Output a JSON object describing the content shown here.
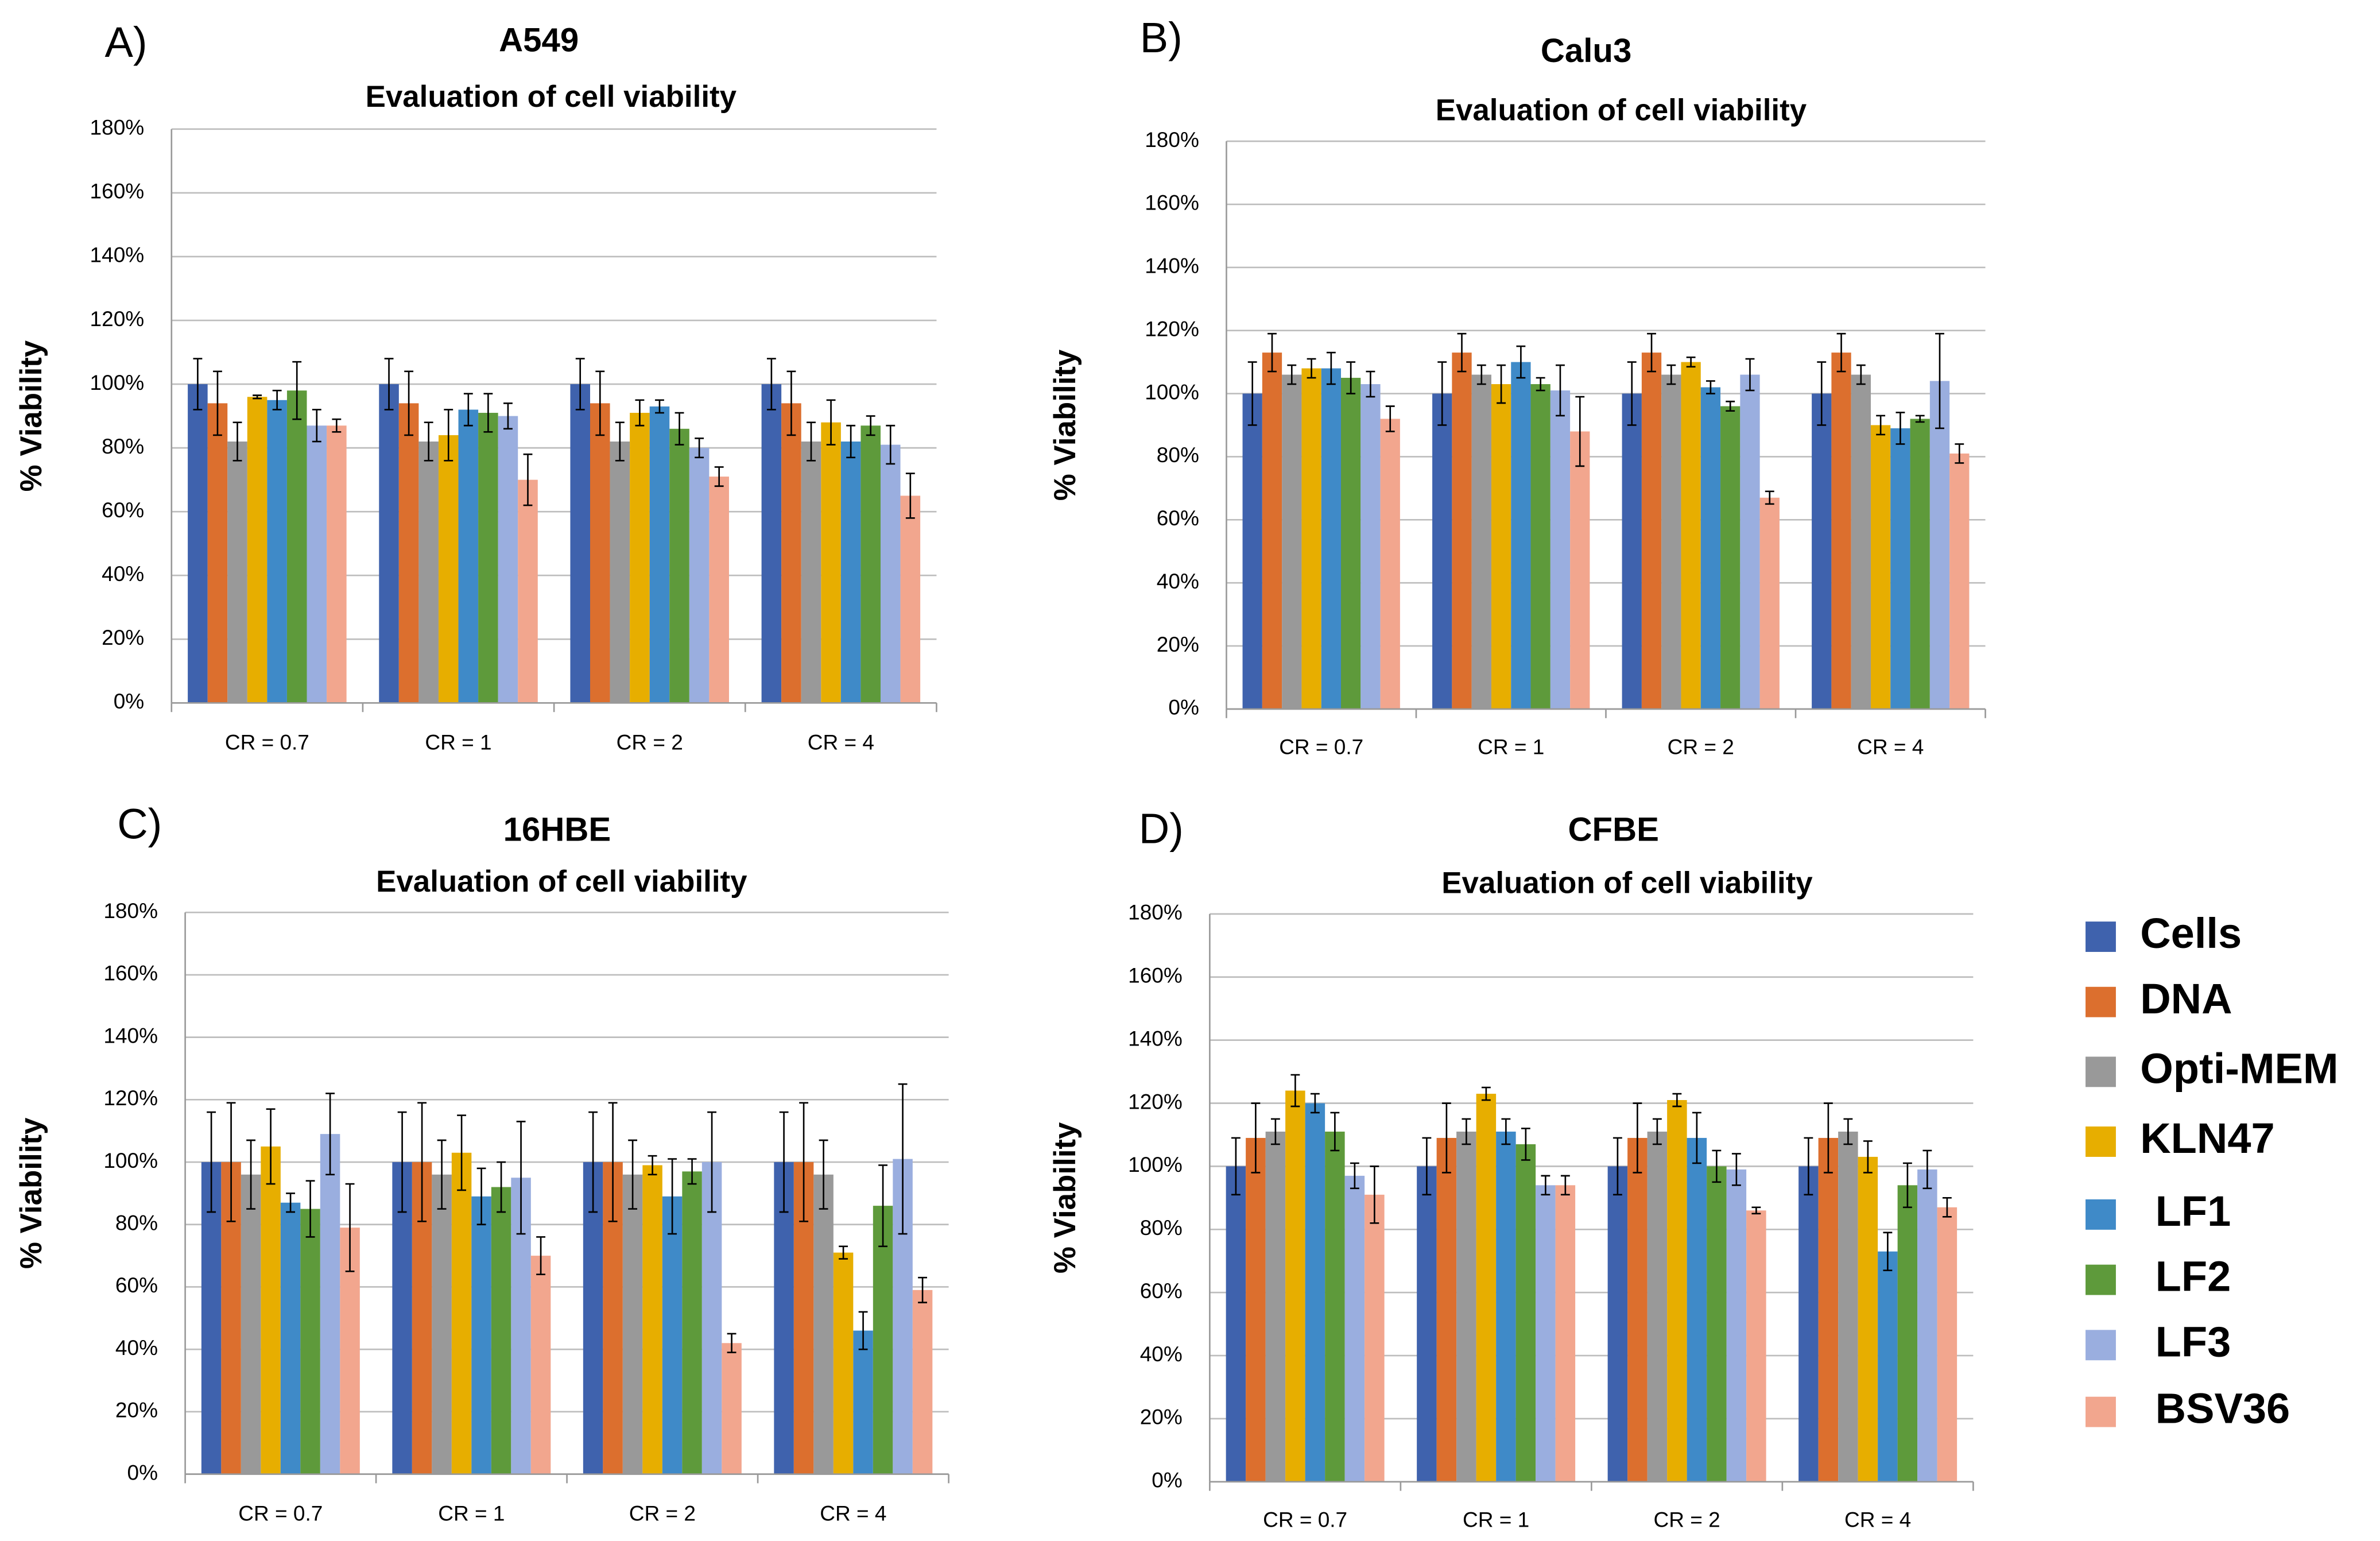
{
  "legend": {
    "entries": [
      {
        "name": "Cells",
        "color": "#3f62ad"
      },
      {
        "name": "DNA",
        "color": "#dc6f2e"
      },
      {
        "name": "Opti-MEM",
        "color": "#999999"
      },
      {
        "name": "KLN47",
        "color": "#e7ae00"
      },
      {
        "name": "LF1",
        "color": "#3f8ac8"
      },
      {
        "name": "LF2",
        "color": "#5e9a3b"
      },
      {
        "name": "LF3",
        "color": "#9aaedf"
      },
      {
        "name": "BSV36",
        "color": "#f2a68e"
      }
    ]
  },
  "chart_data": [
    {
      "type": "bar",
      "panel": "A)",
      "title": "A549",
      "subtitle": "Evaluation of cell viability",
      "y_label": "% Viability",
      "categories": [
        "CR = 0.7",
        "CR = 1",
        "CR = 2",
        "CR = 4"
      ],
      "ylim": [
        0,
        180
      ],
      "yticks": [
        {
          "value": 0,
          "label": "0%"
        },
        {
          "value": 20,
          "label": "20%"
        },
        {
          "value": 40,
          "label": "40%"
        },
        {
          "value": 60,
          "label": "60%"
        },
        {
          "value": 80,
          "label": "80%"
        },
        {
          "value": 100,
          "label": "100%"
        },
        {
          "value": 120,
          "label": "120%"
        },
        {
          "value": 140,
          "label": "140%"
        },
        {
          "value": 160,
          "label": "160%"
        },
        {
          "value": 180,
          "label": "180%"
        }
      ],
      "grid": true,
      "series": [
        {
          "values": [
            100,
            100,
            100,
            100
          ],
          "errors": [
            8,
            8,
            8,
            8
          ]
        },
        {
          "values": [
            94,
            94,
            94,
            94
          ],
          "errors": [
            10,
            10,
            10,
            10
          ]
        },
        {
          "values": [
            82,
            82,
            82,
            82
          ],
          "errors": [
            6,
            6,
            6,
            6
          ]
        },
        {
          "values": [
            96,
            84,
            91,
            88
          ],
          "errors": [
            0.5,
            8,
            4,
            7
          ]
        },
        {
          "values": [
            95,
            92,
            93,
            82
          ],
          "errors": [
            3,
            5,
            2,
            5
          ]
        },
        {
          "values": [
            98,
            91,
            86,
            87
          ],
          "errors": [
            9,
            6,
            5,
            3
          ]
        },
        {
          "values": [
            87,
            90,
            80,
            81
          ],
          "errors": [
            5,
            4,
            3,
            6
          ]
        },
        {
          "values": [
            87,
            70,
            71,
            65
          ],
          "errors": [
            2,
            8,
            3,
            7
          ]
        }
      ]
    },
    {
      "type": "bar",
      "panel": "B)",
      "title": "Calu3",
      "subtitle": "Evaluation of cell viability",
      "y_label": "% Viability",
      "categories": [
        "CR = 0.7",
        "CR = 1",
        "CR = 2",
        "CR = 4"
      ],
      "ylim": [
        0,
        180
      ],
      "yticks": [
        {
          "value": 0,
          "label": "0%"
        },
        {
          "value": 20,
          "label": "20%"
        },
        {
          "value": 40,
          "label": "40%"
        },
        {
          "value": 60,
          "label": "60%"
        },
        {
          "value": 80,
          "label": "80%"
        },
        {
          "value": 100,
          "label": "100%"
        },
        {
          "value": 120,
          "label": "120%"
        },
        {
          "value": 140,
          "label": "140%"
        },
        {
          "value": 160,
          "label": "160%"
        },
        {
          "value": 180,
          "label": "180%"
        }
      ],
      "grid": true,
      "series": [
        {
          "values": [
            100,
            100,
            100,
            100
          ],
          "errors": [
            10,
            10,
            10,
            10
          ]
        },
        {
          "values": [
            113,
            113,
            113,
            113
          ],
          "errors": [
            6,
            6,
            6,
            6
          ]
        },
        {
          "values": [
            106,
            106,
            106,
            106
          ],
          "errors": [
            3,
            3,
            3,
            3
          ]
        },
        {
          "values": [
            108,
            103,
            110,
            90
          ],
          "errors": [
            3,
            6,
            1.5,
            3
          ]
        },
        {
          "values": [
            108,
            110,
            102,
            89
          ],
          "errors": [
            5,
            5,
            2,
            5
          ]
        },
        {
          "values": [
            105,
            103,
            96,
            92
          ],
          "errors": [
            5,
            2,
            1.5,
            1
          ]
        },
        {
          "values": [
            103,
            101,
            106,
            104
          ],
          "errors": [
            4,
            8,
            5,
            15
          ]
        },
        {
          "values": [
            92,
            88,
            67,
            81
          ],
          "errors": [
            4,
            11,
            2,
            3
          ]
        }
      ]
    },
    {
      "type": "bar",
      "panel": "C)",
      "title": "16HBE",
      "subtitle": "Evaluation of cell viability",
      "y_label": "% Viability",
      "categories": [
        "CR = 0.7",
        "CR = 1",
        "CR = 2",
        "CR = 4"
      ],
      "ylim": [
        0,
        180
      ],
      "yticks": [
        {
          "value": 0,
          "label": "0%"
        },
        {
          "value": 20,
          "label": "20%"
        },
        {
          "value": 40,
          "label": "40%"
        },
        {
          "value": 60,
          "label": "60%"
        },
        {
          "value": 80,
          "label": "80%"
        },
        {
          "value": 100,
          "label": "100%"
        },
        {
          "value": 120,
          "label": "120%"
        },
        {
          "value": 140,
          "label": "140%"
        },
        {
          "value": 160,
          "label": "160%"
        },
        {
          "value": 180,
          "label": "180%"
        }
      ],
      "grid": true,
      "series": [
        {
          "values": [
            100,
            100,
            100,
            100
          ],
          "errors": [
            16,
            16,
            16,
            16
          ]
        },
        {
          "values": [
            100,
            100,
            100,
            100
          ],
          "errors": [
            19,
            19,
            19,
            19
          ]
        },
        {
          "values": [
            96,
            96,
            96,
            96
          ],
          "errors": [
            11,
            11,
            11,
            11
          ]
        },
        {
          "values": [
            105,
            103,
            99,
            71
          ],
          "errors": [
            12,
            12,
            3,
            2
          ]
        },
        {
          "values": [
            87,
            89,
            89,
            46
          ],
          "errors": [
            3,
            9,
            12,
            6
          ]
        },
        {
          "values": [
            85,
            92,
            97,
            86
          ],
          "errors": [
            9,
            8,
            4,
            13
          ]
        },
        {
          "values": [
            109,
            95,
            100,
            101
          ],
          "errors": [
            13,
            18,
            16,
            24
          ]
        },
        {
          "values": [
            79,
            70,
            42,
            59
          ],
          "errors": [
            14,
            6,
            3,
            4
          ]
        }
      ]
    },
    {
      "type": "bar",
      "panel": "D)",
      "title": "CFBE",
      "subtitle": "Evaluation of cell viability",
      "y_label": "% Viability",
      "categories": [
        "CR = 0.7",
        "CR = 1",
        "CR = 2",
        "CR = 4"
      ],
      "ylim": [
        0,
        180
      ],
      "yticks": [
        {
          "value": 0,
          "label": "0%"
        },
        {
          "value": 20,
          "label": "20%"
        },
        {
          "value": 40,
          "label": "40%"
        },
        {
          "value": 60,
          "label": "60%"
        },
        {
          "value": 80,
          "label": "80%"
        },
        {
          "value": 100,
          "label": "100%"
        },
        {
          "value": 120,
          "label": "120%"
        },
        {
          "value": 140,
          "label": "140%"
        },
        {
          "value": 160,
          "label": "160%"
        },
        {
          "value": 180,
          "label": "180%"
        }
      ],
      "grid": true,
      "series": [
        {
          "values": [
            100,
            100,
            100,
            100
          ],
          "errors": [
            9,
            9,
            9,
            9
          ]
        },
        {
          "values": [
            109,
            109,
            109,
            109
          ],
          "errors": [
            11,
            11,
            11,
            11
          ]
        },
        {
          "values": [
            111,
            111,
            111,
            111
          ],
          "errors": [
            4,
            4,
            4,
            4
          ]
        },
        {
          "values": [
            124,
            123,
            121,
            103
          ],
          "errors": [
            5,
            2,
            2,
            5
          ]
        },
        {
          "values": [
            120,
            111,
            109,
            73
          ],
          "errors": [
            3,
            4,
            8,
            6
          ]
        },
        {
          "values": [
            111,
            107,
            100,
            94
          ],
          "errors": [
            6,
            5,
            5,
            7
          ]
        },
        {
          "values": [
            97,
            94,
            99,
            99
          ],
          "errors": [
            4,
            3,
            5,
            6
          ]
        },
        {
          "values": [
            91,
            94,
            86,
            87
          ],
          "errors": [
            9,
            3,
            1,
            3
          ]
        }
      ]
    }
  ]
}
